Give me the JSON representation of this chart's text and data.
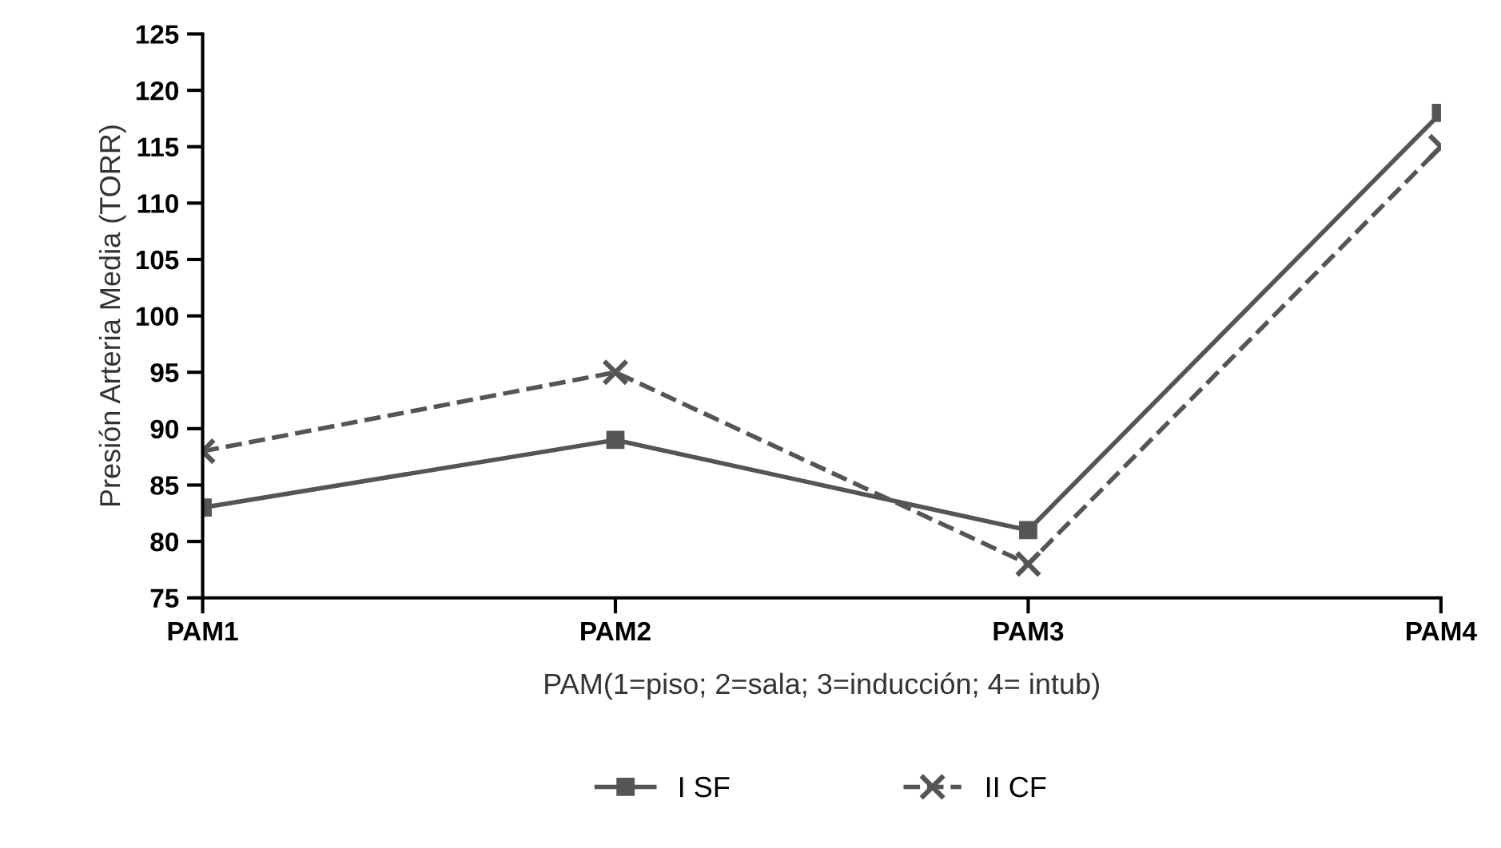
{
  "chart_data": {
    "type": "line",
    "categories": [
      "PAM1",
      "PAM2",
      "PAM3",
      "PAM4"
    ],
    "series": [
      {
        "name": "I SF",
        "color": "#555555",
        "values": [
          83,
          89,
          81,
          118
        ],
        "marker": "square",
        "line_style": "solid"
      },
      {
        "name": "II CF",
        "color": "#555555",
        "values": [
          88,
          95,
          78,
          115
        ],
        "marker": "cross",
        "line_style": "dashed"
      }
    ],
    "xlabel": "PAM(1=piso; 2=sala; 3=inducción; 4= intub)",
    "ylabel": "Presión Arteria Media (TORR)",
    "ylim": [
      75,
      125
    ],
    "yticks": [
      75,
      80,
      85,
      90,
      95,
      100,
      105,
      110,
      115,
      120,
      125
    ],
    "grid": false,
    "legend": "bottom"
  }
}
